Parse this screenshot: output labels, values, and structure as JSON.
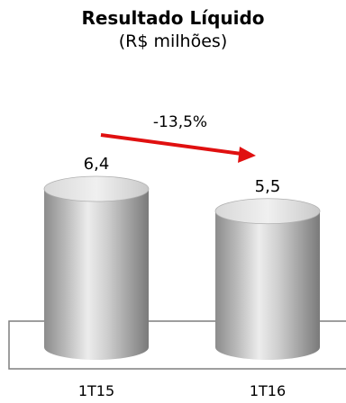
{
  "chart_data": {
    "type": "bar",
    "title": "Resultado Líquido",
    "subtitle": "(R$ milhões)",
    "categories": [
      "1T15",
      "1T16"
    ],
    "values": [
      6.4,
      5.5
    ],
    "value_labels": [
      "6,4",
      "5,5"
    ],
    "change_label": "-13,5%",
    "bar_style": "3d-cylinder",
    "bar_color": "#bdbdbd",
    "arrow_color": "#e01010",
    "xlabel": "",
    "ylabel": "",
    "grid": false,
    "legend": "none"
  }
}
